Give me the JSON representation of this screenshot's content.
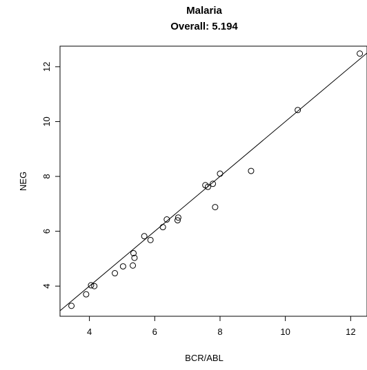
{
  "chart_data": {
    "type": "scatter",
    "title": "Malaria",
    "subtitle": "Overall: 5.194",
    "xlabel": "BCR/ABL",
    "ylabel": "NEG",
    "xlim": [
      3.1,
      12.5
    ],
    "ylim": [
      2.9,
      12.75
    ],
    "xticks": [
      4,
      6,
      8,
      10,
      12
    ],
    "yticks": [
      4,
      6,
      8,
      10,
      12
    ],
    "grid": false,
    "points": [
      {
        "x": 3.45,
        "y": 3.28
      },
      {
        "x": 3.9,
        "y": 3.7
      },
      {
        "x": 4.05,
        "y": 4.03
      },
      {
        "x": 4.15,
        "y": 4.0
      },
      {
        "x": 4.78,
        "y": 4.47
      },
      {
        "x": 5.03,
        "y": 4.72
      },
      {
        "x": 5.33,
        "y": 4.75
      },
      {
        "x": 5.38,
        "y": 5.03
      },
      {
        "x": 5.35,
        "y": 5.2
      },
      {
        "x": 5.68,
        "y": 5.82
      },
      {
        "x": 5.87,
        "y": 5.68
      },
      {
        "x": 6.25,
        "y": 6.15
      },
      {
        "x": 6.37,
        "y": 6.43
      },
      {
        "x": 6.7,
        "y": 6.4
      },
      {
        "x": 6.72,
        "y": 6.5
      },
      {
        "x": 7.55,
        "y": 7.68
      },
      {
        "x": 7.63,
        "y": 7.62
      },
      {
        "x": 7.78,
        "y": 7.73
      },
      {
        "x": 7.85,
        "y": 6.88
      },
      {
        "x": 8.0,
        "y": 8.1
      },
      {
        "x": 8.95,
        "y": 8.2
      },
      {
        "x": 10.38,
        "y": 10.42
      },
      {
        "x": 12.28,
        "y": 12.48
      }
    ],
    "reference_line": {
      "type": "identity",
      "slope": 1,
      "intercept": 0
    }
  }
}
